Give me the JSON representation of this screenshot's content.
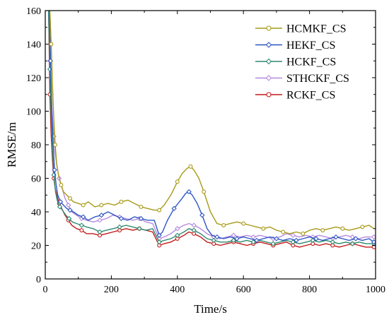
{
  "chart_data": {
    "type": "line",
    "xlabel": "Time/s",
    "ylabel": "RMSE/m",
    "xlim": [
      0,
      1000
    ],
    "ylim": [
      0,
      160
    ],
    "x_ticks": [
      0,
      200,
      400,
      600,
      800,
      1000
    ],
    "y_ticks": [
      0,
      20,
      40,
      60,
      80,
      100,
      120,
      140,
      160
    ],
    "grid": false,
    "legend_position": "top-right",
    "series": [
      {
        "name": "HCMKF_CS",
        "color": "#a89a18",
        "marker": "circle",
        "x": [
          14,
          18,
          22,
          26,
          30,
          35,
          40,
          48,
          55,
          65,
          75,
          85,
          100,
          115,
          130,
          150,
          170,
          190,
          210,
          230,
          250,
          270,
          290,
          310,
          330,
          345,
          360,
          380,
          400,
          415,
          430,
          440,
          450,
          465,
          480,
          500,
          520,
          540,
          560,
          580,
          600,
          620,
          640,
          660,
          680,
          700,
          720,
          740,
          760,
          780,
          800,
          820,
          840,
          860,
          880,
          900,
          920,
          940,
          960,
          980,
          995
        ],
        "y": [
          160,
          140,
          115,
          95,
          80,
          68,
          62,
          56,
          52,
          50,
          48,
          46,
          45,
          44,
          46,
          43,
          44,
          45,
          44,
          46,
          47,
          45,
          43,
          42,
          41,
          41,
          44,
          50,
          58,
          63,
          66,
          67,
          65,
          60,
          52,
          40,
          33,
          32,
          33,
          34,
          33,
          32,
          31,
          30,
          31,
          29,
          28,
          27,
          28,
          27,
          29,
          30,
          29,
          30,
          31,
          30,
          29,
          30,
          31,
          32,
          30
        ]
      },
      {
        "name": "HEKF_CS",
        "color": "#2e56c4",
        "marker": "diamond",
        "x": [
          12,
          16,
          20,
          24,
          28,
          33,
          38,
          46,
          55,
          65,
          75,
          85,
          100,
          115,
          130,
          150,
          170,
          190,
          210,
          230,
          250,
          270,
          290,
          310,
          330,
          345,
          355,
          370,
          390,
          410,
          425,
          435,
          445,
          460,
          475,
          490,
          505,
          520,
          540,
          560,
          580,
          600,
          620,
          640,
          660,
          680,
          700,
          720,
          740,
          760,
          780,
          800,
          820,
          840,
          860,
          880,
          900,
          920,
          940,
          960,
          980,
          995
        ],
        "y": [
          160,
          130,
          100,
          80,
          65,
          56,
          50,
          46,
          44,
          42,
          41,
          40,
          38,
          37,
          35,
          37,
          38,
          40,
          38,
          36,
          35,
          37,
          36,
          35,
          35,
          26,
          28,
          35,
          42,
          47,
          51,
          52,
          50,
          45,
          38,
          30,
          26,
          25,
          24,
          25,
          24,
          25,
          24,
          23,
          24,
          25,
          24,
          23,
          24,
          23,
          24,
          25,
          24,
          23,
          24,
          25,
          24,
          23,
          24,
          23,
          24,
          22
        ]
      },
      {
        "name": "HCKF_CS",
        "color": "#2e8a70",
        "marker": "diamond",
        "x": [
          10,
          14,
          18,
          22,
          26,
          31,
          36,
          44,
          52,
          62,
          72,
          82,
          95,
          110,
          125,
          145,
          165,
          185,
          205,
          225,
          245,
          265,
          285,
          305,
          325,
          345,
          360,
          380,
          400,
          420,
          435,
          450,
          470,
          490,
          510,
          530,
          550,
          570,
          590,
          610,
          630,
          650,
          670,
          690,
          710,
          730,
          750,
          770,
          790,
          810,
          830,
          850,
          870,
          890,
          910,
          930,
          950,
          970,
          995
        ],
        "y": [
          160,
          125,
          95,
          75,
          62,
          52,
          47,
          43,
          41,
          38,
          36,
          34,
          33,
          32,
          31,
          30,
          28,
          29,
          30,
          31,
          32,
          31,
          30,
          29,
          30,
          22,
          23,
          24,
          26,
          28,
          30,
          29,
          27,
          24,
          23,
          22,
          22,
          23,
          22,
          23,
          22,
          23,
          22,
          21,
          22,
          23,
          22,
          21,
          22,
          23,
          22,
          23,
          22,
          21,
          22,
          21,
          22,
          21,
          21
        ]
      },
      {
        "name": "STHCKF_CS",
        "color": "#b58ae0",
        "marker": "diamond",
        "x": [
          10,
          14,
          18,
          22,
          26,
          30,
          35,
          42,
          50,
          60,
          70,
          80,
          95,
          110,
          125,
          145,
          165,
          185,
          205,
          225,
          245,
          265,
          285,
          305,
          325,
          345,
          360,
          380,
          400,
          420,
          435,
          450,
          470,
          490,
          510,
          530,
          550,
          570,
          590,
          610,
          630,
          650,
          670,
          690,
          710,
          730,
          750,
          770,
          790,
          810,
          830,
          850,
          870,
          890,
          910,
          930,
          950,
          970,
          995
        ],
        "y": [
          160,
          130,
          110,
          95,
          85,
          75,
          68,
          60,
          55,
          48,
          44,
          40,
          38,
          36,
          35,
          34,
          35,
          36,
          38,
          37,
          36,
          35,
          36,
          34,
          33,
          24,
          25,
          27,
          30,
          32,
          33,
          32,
          30,
          27,
          25,
          24,
          25,
          26,
          25,
          26,
          25,
          26,
          25,
          24,
          25,
          27,
          26,
          25,
          26,
          25,
          26,
          25,
          24,
          25,
          26,
          25,
          24,
          25,
          25
        ]
      },
      {
        "name": "RCKF_CS",
        "color": "#c41a1a",
        "marker": "circle",
        "x": [
          10,
          14,
          18,
          22,
          26,
          30,
          35,
          42,
          50,
          60,
          70,
          80,
          95,
          110,
          125,
          145,
          165,
          185,
          205,
          225,
          245,
          265,
          285,
          305,
          325,
          345,
          360,
          380,
          400,
          420,
          435,
          450,
          470,
          490,
          510,
          530,
          550,
          570,
          590,
          610,
          630,
          650,
          670,
          690,
          710,
          730,
          750,
          770,
          790,
          810,
          830,
          850,
          870,
          890,
          910,
          930,
          950,
          970,
          995
        ],
        "y": [
          160,
          110,
          85,
          70,
          60,
          54,
          50,
          45,
          42,
          38,
          35,
          32,
          30,
          29,
          27,
          27,
          26,
          27,
          28,
          29,
          30,
          29,
          30,
          29,
          28,
          20,
          21,
          22,
          24,
          26,
          28,
          27,
          25,
          22,
          21,
          20,
          21,
          22,
          21,
          20,
          21,
          22,
          21,
          20,
          21,
          22,
          20,
          19,
          20,
          21,
          20,
          21,
          20,
          19,
          20,
          21,
          20,
          19,
          19
        ]
      }
    ]
  }
}
